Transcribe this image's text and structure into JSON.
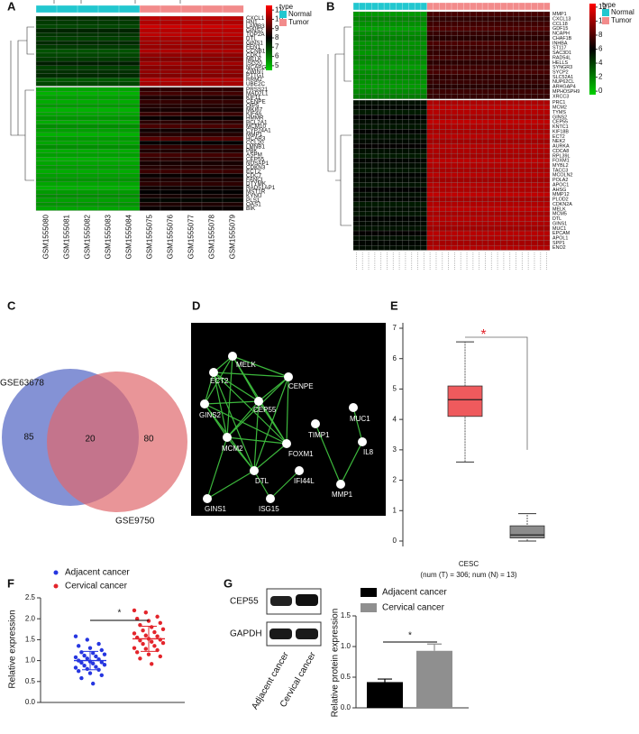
{
  "panel_labels": [
    "A",
    "B",
    "C",
    "D",
    "E",
    "F",
    "G"
  ],
  "chart_data": [
    {
      "type": "heatmap",
      "legend_title": "type",
      "groups": [
        "Normal",
        "Tumor"
      ],
      "group_colors": [
        "#22c7cf",
        "#f28b8b"
      ],
      "columns": [
        "GSM1555080",
        "GSM1555081",
        "GSM1555082",
        "GSM1555083",
        "GSM1555084",
        "GSM1555075",
        "GSM1555076",
        "GSM1555077",
        "GSM1555078",
        "GSM1555079"
      ],
      "rows": [
        "CXCL1",
        "HN1",
        "LAMB3",
        "GINS2",
        "TOP2A",
        "DTL",
        "GINS1",
        "FEN1",
        "CCNB1",
        "CDK1",
        "MELK",
        "ISG20",
        "NCAPG",
        "ZWINT",
        "PTTG1",
        "RRM2",
        "UBE2C",
        "PRSS21",
        "MAD2L1",
        "KIF11",
        "CENPE",
        "OIP5",
        "MKI67",
        "KIF4A",
        "HMMR",
        "BCL2A1",
        "MCM10",
        "CYP24A1",
        "MMP1",
        "HCAR3",
        "CCL20",
        "LMNB1",
        "PBK",
        "ASPM",
        "CEP55",
        "NUSAP1",
        "CDKN3",
        "ECT2",
        "CDC7",
        "FANCI",
        "DTYMK",
        "RAD51AP1",
        "MST1R",
        "KYNU",
        "PLS1",
        "OAS1",
        "BIK"
      ],
      "values": [
        [
          7.2,
          10.6
        ],
        [
          7.0,
          10.4
        ],
        [
          6.8,
          10.8
        ],
        [
          7.4,
          10.5
        ],
        [
          7.1,
          10.6
        ],
        [
          6.9,
          10.3
        ],
        [
          7.3,
          10.2
        ],
        [
          7.0,
          10.1
        ],
        [
          6.6,
          10.4
        ],
        [
          6.8,
          10.0
        ],
        [
          7.0,
          9.8
        ],
        [
          7.5,
          10.2
        ],
        [
          6.9,
          9.9
        ],
        [
          7.2,
          10.0
        ],
        [
          7.3,
          9.8
        ],
        [
          6.5,
          10.5
        ],
        [
          6.8,
          10.3
        ],
        [
          5.2,
          8.6
        ],
        [
          5.0,
          8.9
        ],
        [
          5.3,
          8.4
        ],
        [
          5.1,
          8.7
        ],
        [
          5.4,
          8.5
        ],
        [
          5.0,
          8.3
        ],
        [
          5.2,
          8.8
        ],
        [
          5.5,
          8.1
        ],
        [
          5.1,
          8.6
        ],
        [
          5.6,
          9.0
        ],
        [
          5.3,
          8.2
        ],
        [
          5.0,
          8.5
        ],
        [
          5.4,
          9.2
        ],
        [
          5.2,
          8.0
        ],
        [
          5.6,
          8.7
        ],
        [
          5.1,
          8.4
        ],
        [
          5.3,
          8.9
        ],
        [
          5.0,
          8.6
        ],
        [
          5.2,
          8.3
        ],
        [
          5.4,
          8.5
        ],
        [
          5.1,
          8.8
        ],
        [
          5.3,
          8.1
        ],
        [
          5.5,
          8.4
        ],
        [
          5.2,
          8.6
        ],
        [
          5.0,
          8.2
        ],
        [
          5.4,
          8.0
        ],
        [
          5.6,
          8.3
        ],
        [
          5.3,
          7.9
        ],
        [
          5.5,
          8.4
        ],
        [
          5.2,
          8.1
        ]
      ],
      "colorbar_lim": [
        4.5,
        11.5
      ],
      "colorbar_ticks": [
        5,
        6,
        7,
        8,
        9,
        10,
        11
      ]
    },
    {
      "type": "heatmap",
      "legend_title": "type",
      "groups": [
        "Normal",
        "Tumor"
      ],
      "group_colors": [
        "#22c7cf",
        "#f28b8b"
      ],
      "rows": [
        "MMP1",
        "CXCL13",
        "CCL18",
        "GDF15",
        "NCAPH",
        "CHAF1B",
        "INHBA",
        "ST117",
        "SAC3D1",
        "RAD54L",
        "HELLS",
        "SYNGR3",
        "SYCP2",
        "SLC52A1",
        "NUP62CL",
        "ARHGAP4",
        "MPHOSPH9",
        "XRCC3",
        "PRC1",
        "MCM2",
        "TYMS",
        "GINS2",
        "CEP55",
        "KNTC1",
        "KIF18B",
        "ECT2",
        "NEK2",
        "AURKA",
        "CDCA8",
        "RPL39L",
        "FOXM1",
        "MYBL2",
        "TACC3",
        "MCOLN2",
        "POLA2",
        "APOC1",
        "AHSG",
        "MMP12",
        "PLOD2",
        "CDKN2A",
        "MELK",
        "MCM5",
        "DTL",
        "GINS1",
        "MUC1",
        "EPCAM",
        "APOL1",
        "SPP1",
        "ENO2"
      ],
      "values": [
        [
          1.2,
          7.8
        ],
        [
          1.8,
          7.2
        ],
        [
          1.5,
          7.6
        ],
        [
          1.0,
          8.0
        ],
        [
          1.6,
          7.4
        ],
        [
          2.0,
          7.0
        ],
        [
          1.4,
          7.9
        ],
        [
          1.7,
          7.5
        ],
        [
          1.3,
          7.3
        ],
        [
          1.9,
          7.7
        ],
        [
          1.5,
          7.1
        ],
        [
          1.1,
          7.6
        ],
        [
          1.6,
          7.8
        ],
        [
          1.8,
          7.2
        ],
        [
          1.4,
          7.4
        ],
        [
          1.2,
          7.0
        ],
        [
          1.7,
          7.5
        ],
        [
          2.1,
          7.3
        ],
        [
          5.5,
          10.4
        ],
        [
          5.8,
          10.8
        ],
        [
          5.2,
          10.6
        ],
        [
          6.0,
          10.2
        ],
        [
          5.6,
          10.9
        ],
        [
          5.3,
          10.5
        ],
        [
          5.9,
          10.3
        ],
        [
          5.4,
          10.7
        ],
        [
          5.7,
          10.1
        ],
        [
          6.1,
          10.6
        ],
        [
          5.5,
          10.4
        ],
        [
          5.2,
          10.2
        ],
        [
          5.8,
          10.8
        ],
        [
          5.6,
          10.5
        ],
        [
          5.3,
          10.3
        ],
        [
          5.9,
          10.7
        ],
        [
          5.7,
          10.1
        ],
        [
          5.4,
          10.6
        ],
        [
          6.0,
          10.4
        ],
        [
          5.5,
          10.9
        ],
        [
          5.8,
          10.2
        ],
        [
          5.2,
          10.5
        ],
        [
          5.6,
          10.8
        ],
        [
          5.3,
          10.3
        ],
        [
          5.9,
          10.6
        ],
        [
          5.7,
          10.4
        ],
        [
          5.4,
          10.1
        ],
        [
          6.1,
          10.7
        ],
        [
          5.5,
          10.5
        ],
        [
          5.8,
          10.2
        ],
        [
          5.6,
          10.6
        ]
      ],
      "colorbar_lim": [
        -0.5,
        12.5
      ],
      "colorbar_ticks": [
        0,
        2,
        4,
        6,
        8,
        10,
        12
      ]
    },
    {
      "type": "venn",
      "sets": [
        "GSE63678",
        "GSE9750"
      ],
      "colors": [
        "#6f7fce",
        "#e0686c"
      ],
      "values": [
        85,
        20,
        80
      ]
    },
    {
      "type": "network",
      "nodes": [
        "MELK",
        "ECT2",
        "CENPE",
        "CEP55",
        "GINS2",
        "FOXM1",
        "MCM2",
        "DTL",
        "IFI44L",
        "GINS1",
        "ISG15",
        "TIMP1",
        "MUC1",
        "IL8",
        "MMP1"
      ]
    },
    {
      "type": "box",
      "annotation": "*",
      "xlabel": "CESC",
      "subtitle": "(num (T) = 306; num (N) = 13)",
      "ylim": [
        0,
        7
      ],
      "yticks": [
        0,
        1,
        2,
        3,
        4,
        5,
        6,
        7
      ],
      "boxes": [
        {
          "color": "#ef5a5d",
          "whisker_low": 2.6,
          "q1": 4.1,
          "median": 4.65,
          "q3": 5.1,
          "whisker_high": 6.55
        },
        {
          "color": "#8c8c8c",
          "whisker_low": 0.0,
          "q1": 0.1,
          "median": 0.2,
          "q3": 0.5,
          "whisker_high": 0.9
        }
      ]
    },
    {
      "type": "scatter",
      "ylabel": "Relative expression",
      "annotation": "*",
      "ylim": [
        0,
        2.5
      ],
      "yticks": [
        {
          "value": 0,
          "label": "0.0"
        },
        0.5,
        {
          "value": 1,
          "label": "1.0"
        },
        1.5,
        {
          "value": 2,
          "label": "2.0"
        },
        2.5
      ],
      "series": [
        {
          "name": "Adjacent cancer",
          "color": "#2636e0",
          "mean": 1.0,
          "sd": 0.22,
          "values": [
            1.58,
            1.5,
            1.4,
            1.35,
            1.3,
            1.25,
            1.2,
            1.18,
            1.15,
            1.12,
            1.1,
            1.08,
            1.05,
            1.03,
            1.0,
            0.98,
            0.96,
            0.95,
            0.93,
            0.9,
            0.88,
            0.85,
            0.83,
            0.8,
            0.78,
            0.75,
            0.7,
            0.65,
            0.58,
            0.45
          ]
        },
        {
          "name": "Cervical cancer",
          "color": "#e3242b",
          "mean": 1.52,
          "sd": 0.3,
          "values": [
            2.2,
            2.15,
            2.05,
            2.0,
            1.95,
            1.9,
            1.85,
            1.8,
            1.75,
            1.72,
            1.68,
            1.65,
            1.6,
            1.58,
            1.55,
            1.52,
            1.5,
            1.48,
            1.45,
            1.42,
            1.4,
            1.35,
            1.3,
            1.28,
            1.25,
            1.2,
            1.15,
            1.1,
            1.05,
            0.92
          ]
        }
      ]
    },
    {
      "type": "bar",
      "ylabel": "Relative protein expression",
      "annotation": "*",
      "ylim": [
        0,
        1.5
      ],
      "yticks": [
        {
          "value": 0,
          "label": "0.0"
        },
        0.5,
        {
          "value": 1,
          "label": "1.0"
        },
        1.5
      ],
      "series": [
        {
          "name": "Adjacent cancer",
          "color": "#000000",
          "values": [
            0.42
          ],
          "errors": [
            0.05
          ]
        },
        {
          "name": "Cervical cancer",
          "color": "#8f8f8f",
          "values": [
            0.93
          ],
          "errors": [
            0.11
          ]
        }
      ]
    }
  ],
  "blot": {
    "rows": [
      "CEP55",
      "GAPDH"
    ],
    "lanes": [
      "Adjacent cancer",
      "Cervical cancer"
    ]
  }
}
